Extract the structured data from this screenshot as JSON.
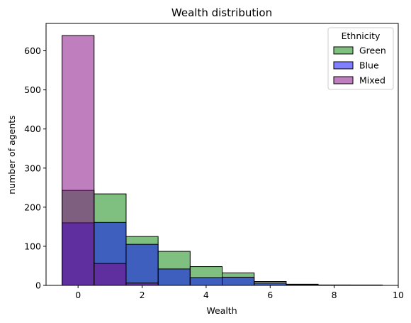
{
  "chart_data": {
    "type": "bar",
    "title": "Wealth distribution",
    "xlabel": "Wealth",
    "ylabel": "number of agents",
    "xlim": [
      -1,
      10
    ],
    "ylim": [
      0,
      670
    ],
    "xticks": [
      0,
      2,
      4,
      6,
      8,
      10
    ],
    "yticks": [
      0,
      100,
      200,
      300,
      400,
      500,
      600
    ],
    "bin_width": 1,
    "bin_centers": [
      0,
      1,
      2,
      3,
      4,
      5,
      6,
      7,
      8,
      9
    ],
    "legend": {
      "title": "Ethnicity",
      "position": "top-right"
    },
    "series": [
      {
        "name": "Green",
        "color": "#008000",
        "alpha": 0.5,
        "values": [
          243,
          234,
          125,
          87,
          48,
          32,
          10,
          3,
          1,
          1
        ]
      },
      {
        "name": "Blue",
        "color": "#0000ff",
        "alpha": 0.5,
        "values": [
          160,
          161,
          105,
          42,
          20,
          21,
          6,
          2,
          1,
          0
        ]
      },
      {
        "name": "Mixed",
        "color": "#800080",
        "alpha": 0.5,
        "values": [
          639,
          56,
          6,
          0,
          0,
          0,
          0,
          0,
          0,
          0
        ]
      }
    ]
  }
}
